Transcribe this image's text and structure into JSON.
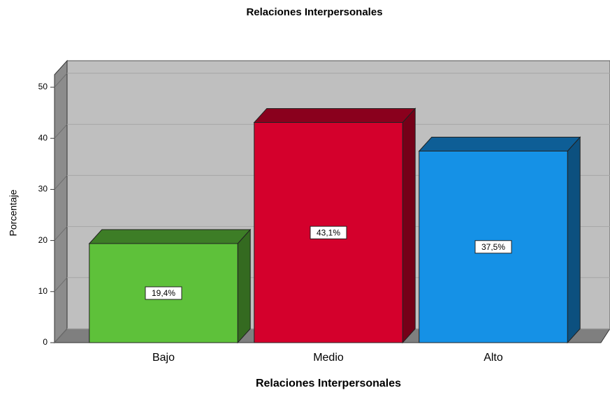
{
  "chart_data": {
    "type": "bar",
    "title": "Relaciones Interpersonales",
    "x_label": "Relaciones Interpersonales",
    "y_label": "Porcentaje",
    "categories": [
      "Bajo",
      "Medio",
      "Alto"
    ],
    "values": [
      19.4,
      43.1,
      37.5
    ],
    "value_labels": [
      "19,4%",
      "43,1%",
      "37,5%"
    ],
    "colors": [
      "#5ec13a",
      "#d4002c",
      "#1591e6"
    ],
    "ylim": [
      0,
      50
    ],
    "yticks": [
      0,
      10,
      20,
      30,
      40,
      50
    ],
    "grid": true
  }
}
